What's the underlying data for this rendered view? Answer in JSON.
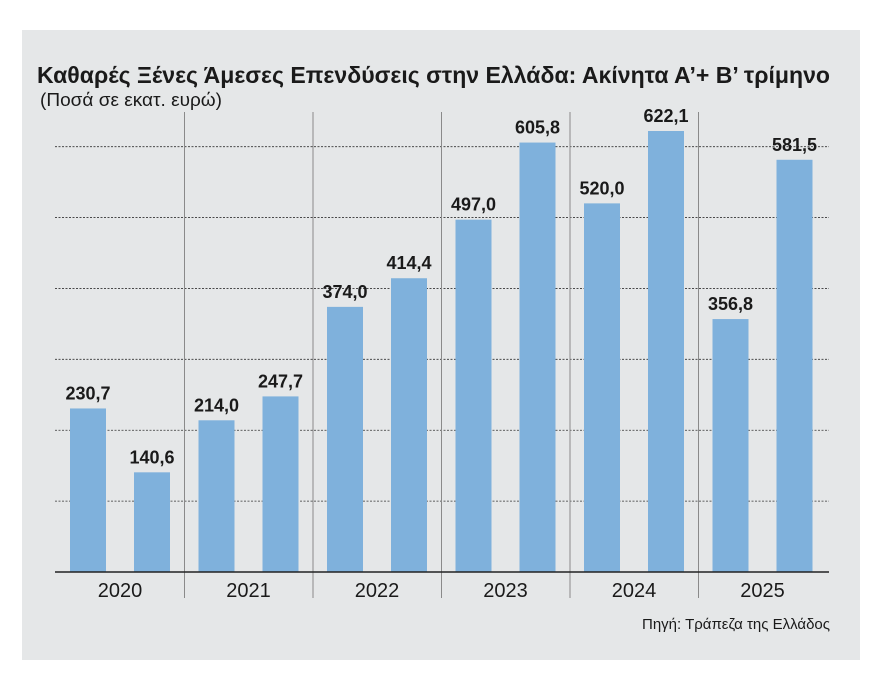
{
  "chart_data": {
    "type": "bar",
    "title": "Καθαρές Ξένες Άμεσες Επενδύσεις στην Ελλάδα: Ακίνητα Α’+ Β’ τρίμηνο",
    "subtitle": "(Ποσά σε εκατ. ευρώ)",
    "categories": [
      "2020",
      "2021",
      "2022",
      "2023",
      "2024",
      "2025"
    ],
    "series": [
      {
        "name": "Α’ τρίμηνο",
        "values": [
          230.7,
          214.0,
          374.0,
          497.0,
          520.0,
          356.8
        ]
      },
      {
        "name": "Β’ τρίμηνο",
        "values": [
          140.6,
          247.7,
          414.4,
          605.8,
          622.1,
          581.5
        ]
      }
    ],
    "data_labels": [
      [
        "230,7",
        "140,6"
      ],
      [
        "214,0",
        "247,7"
      ],
      [
        "374,0",
        "414,4"
      ],
      [
        "497,0",
        "605,8"
      ],
      [
        "520,0",
        "622,1"
      ],
      [
        "356,8",
        "581,5"
      ]
    ],
    "ylim": [
      0,
      650
    ],
    "gridlines": [
      100,
      200,
      300,
      400,
      500,
      600
    ],
    "grid": true,
    "xlabel": "",
    "ylabel": "",
    "source": "Πηγή: Τράπεζα της Ελλάδος",
    "colors": {
      "bar": "#7fb1dc",
      "background": "#e5e7e8",
      "text": "#1a1a1a"
    }
  }
}
